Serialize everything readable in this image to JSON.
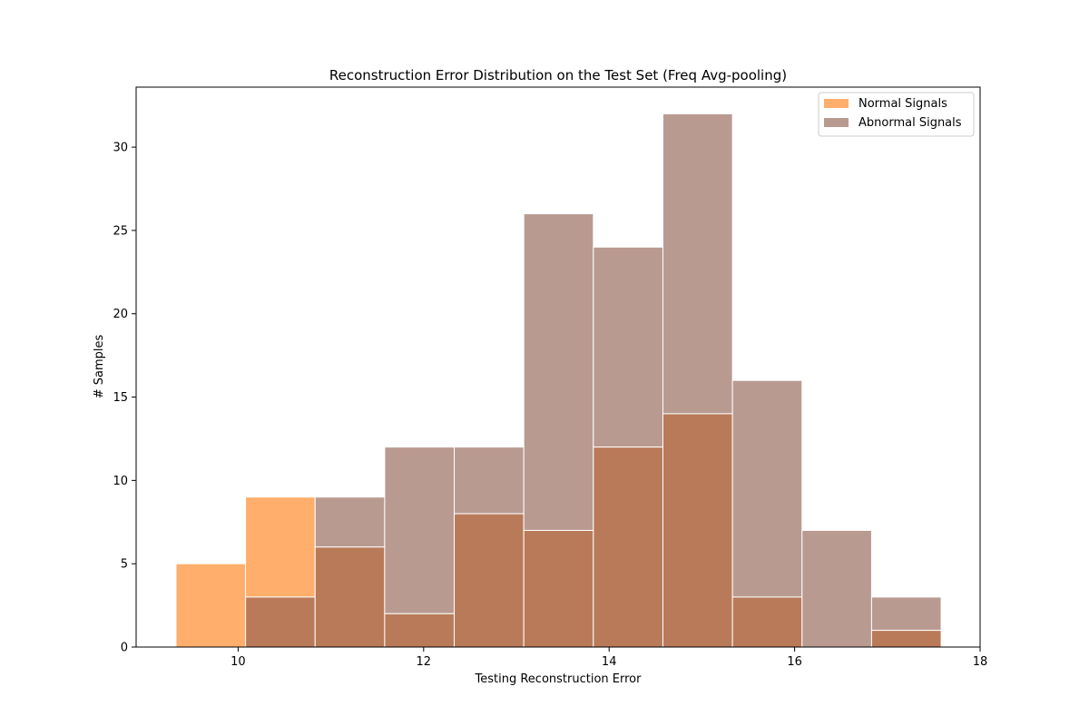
{
  "chart_data": {
    "type": "bar",
    "title": "Reconstruction Error Distribution on the Test Set (Freq Avg-pooling)",
    "xlabel": "Testing Reconstruction Error",
    "ylabel": "# Samples",
    "xlim": [
      8.9,
      18
    ],
    "ylim": [
      0,
      33.6
    ],
    "xticks": [
      10,
      12,
      14,
      16,
      18
    ],
    "yticks": [
      0,
      5,
      10,
      15,
      20,
      25,
      30
    ],
    "bin_edges": [
      9.33,
      10.08,
      10.83,
      11.58,
      12.33,
      13.08,
      13.83,
      14.58,
      15.33,
      16.08,
      16.83,
      17.58
    ],
    "grid": false,
    "legend_position": "top-right",
    "series": [
      {
        "name": "Normal Signals",
        "color": "#ffae6b",
        "values": [
          5,
          9,
          6,
          2,
          8,
          7,
          12,
          14,
          3,
          0,
          1
        ]
      },
      {
        "name": "Abnormal Signals",
        "color": "#b99a91",
        "values": [
          0,
          3,
          9,
          12,
          12,
          26,
          24,
          32,
          16,
          7,
          3
        ]
      }
    ],
    "overlap_color": "#b97a59"
  }
}
